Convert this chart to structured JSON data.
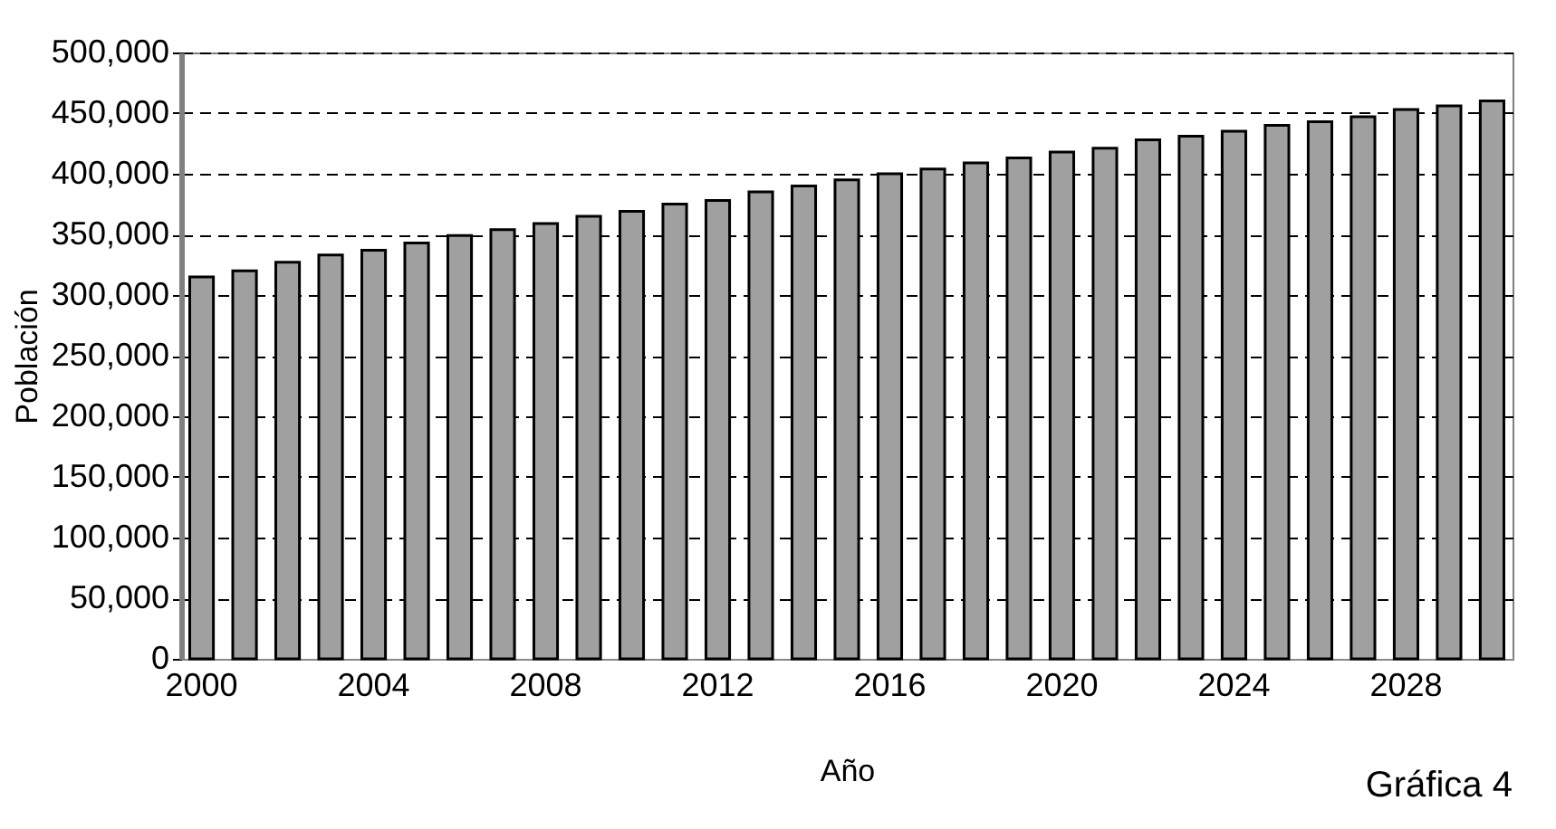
{
  "chart_data": {
    "type": "bar",
    "xlabel": "Año",
    "ylabel": "Población",
    "categories": [
      "2000",
      null,
      null,
      null,
      "2004",
      null,
      null,
      null,
      "2008",
      null,
      null,
      null,
      "2012",
      null,
      null,
      null,
      "2016",
      null,
      null,
      null,
      "2020",
      null,
      null,
      null,
      "2024",
      null,
      null,
      null,
      "2028",
      null,
      null
    ],
    "values": [
      315000,
      320000,
      327000,
      333000,
      337000,
      343000,
      349000,
      354000,
      359000,
      365000,
      369000,
      375000,
      378000,
      385000,
      390000,
      395000,
      400000,
      404000,
      409000,
      413000,
      418000,
      421000,
      428000,
      431000,
      435000,
      440000,
      443000,
      447000,
      453000,
      456000,
      460000
    ],
    "color": "#a0a0a0",
    "ylim": [
      0,
      500000
    ],
    "yticks": [
      0,
      {
        "value": 50000,
        "label": "50,000"
      },
      {
        "value": 100000,
        "label": "100,000"
      },
      {
        "value": 150000,
        "label": "150,000"
      },
      {
        "value": 200000,
        "label": "200,000"
      },
      {
        "value": 250000,
        "label": "250,000"
      },
      {
        "value": 300000,
        "label": "300,000"
      },
      {
        "value": 350000,
        "label": "350,000"
      },
      {
        "value": 400000,
        "label": "400,000"
      },
      {
        "value": 450000,
        "label": "450,000"
      },
      {
        "value": 500000,
        "label": "500,000"
      }
    ],
    "grid": "y",
    "annotations": [
      "Gráfica 4"
    ]
  }
}
